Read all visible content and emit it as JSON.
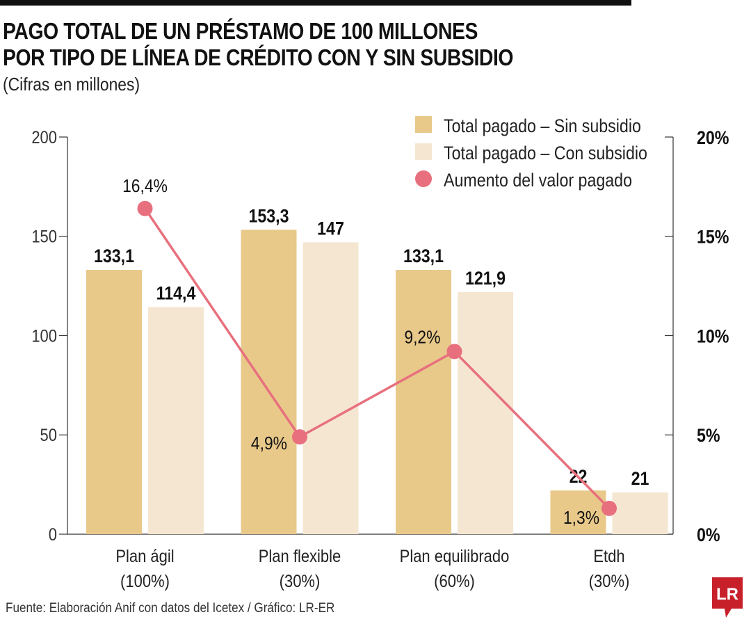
{
  "chart_data": {
    "type": "bar",
    "title": "PAGO TOTAL DE UN PRÉSTAMO DE 100 MILLONES POR TIPO DE LÍNEA DE CRÉDITO CON Y SIN SUBSIDIO",
    "title_lines": [
      "PAGO TOTAL DE UN PRÉSTAMO DE 100 MILLONES",
      "POR TIPO DE LÍNEA DE CRÉDITO CON Y SIN SUBSIDIO"
    ],
    "subtitle": "(Cifras en millones)",
    "source": "Fuente: Elaboración Anif con datos del Icetex / Gráfico: LR-ER",
    "categories": [
      [
        "Plan ágil",
        "(100%)"
      ],
      [
        "Plan flexible",
        "(30%)"
      ],
      [
        "Plan equilibrado",
        "(60%)"
      ],
      [
        "Etdh",
        "(30%)"
      ]
    ],
    "series": [
      {
        "name": "Total pagado - Sin subsidio",
        "type": "bar",
        "axis": "left",
        "color": "#e8c98a",
        "values": [
          133.1,
          153.3,
          133.1,
          22
        ],
        "labels": [
          "133,1",
          "153,3",
          "133,1",
          "22"
        ]
      },
      {
        "name": "Total pagado - Con subsidio",
        "type": "bar",
        "axis": "left",
        "color": "#f5e6d2",
        "values": [
          114.4,
          147,
          121.9,
          21
        ],
        "labels": [
          "114,4",
          "147",
          "121,9",
          "21"
        ]
      },
      {
        "name": "Aumento del valor pagado",
        "type": "line",
        "axis": "right",
        "color": "#e8707e",
        "values": [
          16.4,
          4.9,
          9.2,
          1.3
        ],
        "labels": [
          "16,4%",
          "4,9%",
          "9,2%",
          "1,3%"
        ]
      }
    ],
    "y_left": {
      "range": [
        0,
        200
      ],
      "ticks": [
        "0",
        "50",
        "100",
        "150",
        "200"
      ]
    },
    "y_right": {
      "range": [
        0,
        20
      ],
      "ticks": [
        "0%",
        "5%",
        "10%",
        "15%",
        "20%"
      ]
    },
    "legend": "top-right",
    "grid": false
  },
  "logo": {
    "text": "LR",
    "color": "#c8202a"
  }
}
